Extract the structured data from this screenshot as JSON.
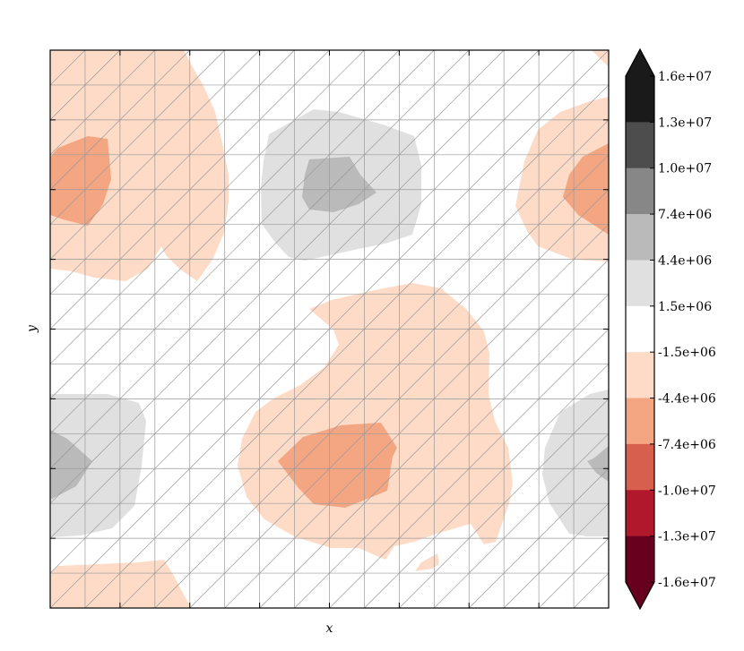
{
  "chart_data": {
    "type": "heatmap",
    "subtype": "filled-contour-on-triangulation",
    "xlabel": "x",
    "ylabel": "y",
    "x_tick_labels_shown": false,
    "y_tick_labels_shown": false,
    "grid": "triangulation mesh (16 x 16 quads, diagonal split)",
    "colormap": "RdGy",
    "colorbar": {
      "placement": "right",
      "extend": "both",
      "tick_labels": [
        "1.6e+07",
        "1.3e+07",
        "1.0e+07",
        "7.4e+06",
        "4.4e+06",
        "1.5e+06",
        "-1.5e+06",
        "-4.4e+06",
        "-7.4e+06",
        "-1.0e+07",
        "-1.3e+07",
        "-1.6e+07"
      ],
      "band_colors": [
        "#1a1a1a",
        "#4d4d4d",
        "#878787",
        "#bababa",
        "#e0e0e0",
        "#ffffff",
        "#fddbc7",
        "#f4a582",
        "#d6604d",
        "#b2182b",
        "#67001f"
      ],
      "top_extension_color": "#1a1a1a",
      "bottom_extension_color": "#67001f"
    },
    "regions": [
      {
        "level_range": [
          "-4.4e+06",
          "-1.5e+06"
        ],
        "color": "#fddbc7",
        "location": "upper-left"
      },
      {
        "level_range": [
          "-7.4e+06",
          "-4.4e+06"
        ],
        "color": "#f4a582",
        "location": "upper-left core"
      },
      {
        "level_range": [
          "1.5e+06",
          "4.4e+06"
        ],
        "color": "#e0e0e0",
        "location": "upper-center"
      },
      {
        "level_range": [
          "4.4e+06",
          "7.4e+06"
        ],
        "color": "#bababa",
        "location": "upper-center core"
      },
      {
        "level_range": [
          "-4.4e+06",
          "-1.5e+06"
        ],
        "color": "#fddbc7",
        "location": "upper-right"
      },
      {
        "level_range": [
          "-7.4e+06",
          "-4.4e+06"
        ],
        "color": "#f4a582",
        "location": "upper-right core"
      },
      {
        "level_range": [
          "-4.4e+06",
          "-1.5e+06"
        ],
        "color": "#fddbc7",
        "location": "center"
      },
      {
        "level_range": [
          "-7.4e+06",
          "-4.4e+06"
        ],
        "color": "#f4a582",
        "location": "lower-center core"
      },
      {
        "level_range": [
          "1.5e+06",
          "4.4e+06"
        ],
        "color": "#e0e0e0",
        "location": "lower-left"
      },
      {
        "level_range": [
          "4.4e+06",
          "7.4e+06"
        ],
        "color": "#bababa",
        "location": "lower-left core"
      },
      {
        "level_range": [
          "1.5e+06",
          "4.4e+06"
        ],
        "color": "#e0e0e0",
        "location": "lower-right"
      },
      {
        "level_range": [
          "4.4e+06",
          "7.4e+06"
        ],
        "color": "#bababa",
        "location": "lower-right core"
      },
      {
        "level_range": [
          "-4.4e+06",
          "-1.5e+06"
        ],
        "color": "#fddbc7",
        "location": "bottom-left"
      }
    ]
  }
}
